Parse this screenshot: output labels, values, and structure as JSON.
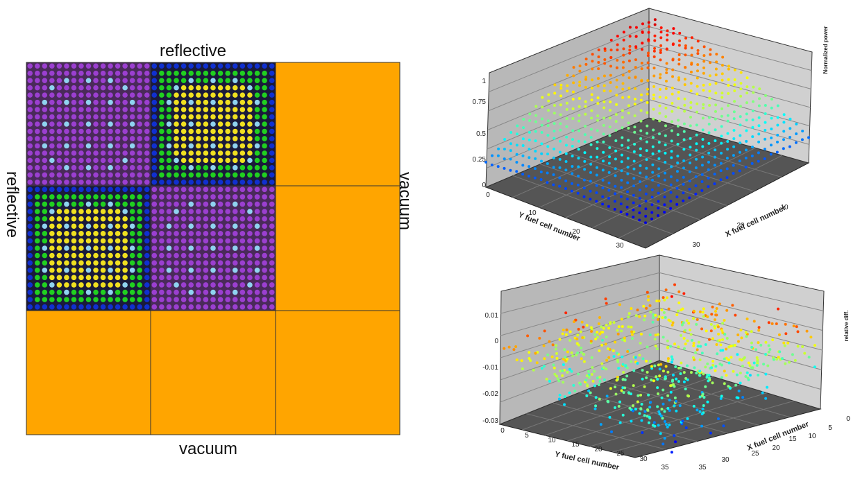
{
  "core_map": {
    "labels": {
      "top": "reflective",
      "left": "reflective",
      "right": "vacuum",
      "bottom": "vacuum"
    }
  },
  "plot_top": {
    "z_label": "Normalized power",
    "x_label": "X fuel cell number",
    "y_label": "Y fuel cell number",
    "zticks": [
      "0",
      "0.25",
      "0.5",
      "0.75",
      "1"
    ],
    "yticks": [
      "0",
      "10",
      "20",
      "30"
    ],
    "xticks": [
      "10",
      "20",
      "30"
    ]
  },
  "plot_bottom": {
    "z_label": "relative diff.",
    "x_label": "X fuel cell number",
    "y_label": "Y fuel cell number",
    "zticks": [
      "-0.03",
      "-0.02",
      "-0.01",
      "0",
      "0.01"
    ],
    "yticks": [
      "0",
      "5",
      "10",
      "15",
      "20",
      "25",
      "30",
      "35"
    ],
    "xticks": [
      "0",
      "5",
      "10",
      "15",
      "20",
      "25",
      "30",
      "35"
    ]
  }
}
